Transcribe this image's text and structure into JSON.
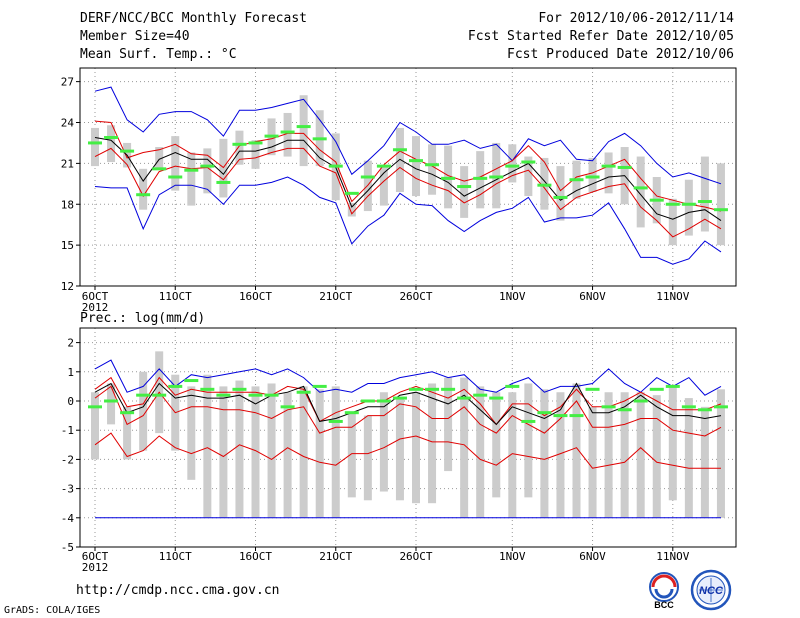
{
  "header": {
    "title": "DERF/NCC/BCC Monthly Forecast",
    "member_size": "Member Size=40",
    "variable": "Mean Surf. Temp.: °C",
    "period": "For 2012/10/06-2012/11/14",
    "started": "Fcst Started Refer Date 2012/10/05",
    "produced": "Fcst Produced Date 2012/10/06"
  },
  "footer": {
    "url": "http://cmdp.ncc.cma.gov.cn",
    "grads": "GrADS: COLA/IGES"
  },
  "logos": {
    "bcc_text": "BCC",
    "ncc_text": "NCC"
  },
  "colors": {
    "mean": "#000000",
    "spread": "#e00000",
    "extreme": "#0000dd",
    "box": "#cccccc",
    "ens": "#44ee44",
    "grid": "#999999"
  },
  "x_ticks": [
    "6OCT",
    "11OCT",
    "16OCT",
    "21OCT",
    "26OCT",
    "1NOV",
    "6NOV",
    "11NOV"
  ],
  "x_year": "2012",
  "chart_data": [
    {
      "type": "line",
      "title": "Mean Surf. Temp.: °C",
      "ylim": [
        12,
        28
      ],
      "yticks": [
        12,
        15,
        18,
        21,
        24,
        27
      ],
      "x": [
        1,
        2,
        3,
        4,
        5,
        6,
        7,
        8,
        9,
        10,
        11,
        12,
        13,
        14,
        15,
        16,
        17,
        18,
        19,
        20,
        21,
        22,
        23,
        24,
        25,
        26,
        27,
        28,
        29,
        30,
        31,
        32,
        33,
        34,
        35,
        36,
        37,
        38,
        39,
        40
      ],
      "series": [
        {
          "name": "max",
          "color": "#0000dd",
          "values": [
            26.3,
            26.6,
            24.2,
            23.3,
            24.6,
            24.8,
            24.8,
            24.2,
            23.0,
            24.9,
            24.9,
            25.1,
            25.4,
            25.7,
            24.2,
            22.6,
            20.2,
            21.2,
            22.3,
            24.0,
            23.3,
            22.4,
            22.4,
            22.7,
            22.1,
            22.4,
            21.2,
            22.8,
            22.3,
            22.7,
            21.3,
            21.2,
            22.6,
            23.2,
            22.3,
            21.0,
            20.0,
            20.3,
            19.9,
            19.5
          ]
        },
        {
          "name": "upper",
          "color": "#e00000",
          "values": [
            24.1,
            24.0,
            21.4,
            21.8,
            22.0,
            22.4,
            21.7,
            21.6,
            20.7,
            22.3,
            22.6,
            22.8,
            23.2,
            23.2,
            22.0,
            21.1,
            18.2,
            19.4,
            20.9,
            21.9,
            21.3,
            20.8,
            20.1,
            19.7,
            20.0,
            20.6,
            21.2,
            22.3,
            21.1,
            19.0,
            20.0,
            20.3,
            20.8,
            21.3,
            19.9,
            18.6,
            18.3,
            18.0,
            17.8,
            17.5
          ]
        },
        {
          "name": "mean",
          "color": "#000000",
          "values": [
            22.9,
            22.7,
            21.6,
            19.7,
            21.3,
            21.8,
            21.3,
            21.3,
            20.2,
            21.9,
            21.9,
            22.2,
            22.7,
            22.7,
            21.4,
            20.7,
            17.8,
            19.0,
            20.3,
            21.3,
            20.6,
            20.2,
            19.6,
            18.6,
            19.2,
            19.8,
            20.4,
            21.0,
            19.7,
            18.3,
            19.0,
            19.5,
            20.0,
            20.1,
            18.7,
            17.3,
            16.9,
            17.4,
            17.6,
            16.8
          ]
        },
        {
          "name": "lower",
          "color": "#e00000",
          "values": [
            21.5,
            22.1,
            20.9,
            18.6,
            20.4,
            20.8,
            20.6,
            20.7,
            19.8,
            21.3,
            21.4,
            21.8,
            22.1,
            22.1,
            20.8,
            20.3,
            17.3,
            18.6,
            19.7,
            20.7,
            19.9,
            19.4,
            19.0,
            18.1,
            18.7,
            19.5,
            20.1,
            20.5,
            19.2,
            17.6,
            18.5,
            18.9,
            19.3,
            19.5,
            17.8,
            16.8,
            15.6,
            16.2,
            16.9,
            16.2
          ]
        },
        {
          "name": "min",
          "color": "#0000dd",
          "values": [
            19.3,
            19.2,
            19.2,
            16.2,
            18.7,
            19.4,
            19.4,
            19.1,
            18.0,
            19.4,
            19.4,
            19.6,
            20.0,
            19.4,
            18.5,
            18.1,
            15.1,
            16.4,
            17.2,
            18.8,
            18.0,
            17.9,
            16.8,
            16.0,
            16.8,
            17.4,
            17.7,
            18.5,
            16.7,
            17.0,
            17.0,
            17.2,
            18.1,
            16.2,
            14.1,
            14.1,
            13.6,
            14.0,
            15.3,
            14.5
          ]
        }
      ],
      "box_range": [
        [
          20.8,
          23.6
        ],
        [
          21.1,
          23.8
        ],
        [
          20.7,
          22.5
        ],
        [
          17.6,
          20.6
        ],
        [
          20.7,
          22.2
        ],
        [
          19.0,
          23.0
        ],
        [
          17.9,
          21.8
        ],
        [
          18.8,
          22.1
        ],
        [
          18.5,
          22.8
        ],
        [
          20.9,
          23.4
        ],
        [
          20.6,
          22.7
        ],
        [
          21.6,
          24.3
        ],
        [
          21.5,
          24.7
        ],
        [
          20.8,
          26.0
        ],
        [
          20.8,
          24.9
        ],
        [
          18.3,
          23.2
        ],
        [
          17.1,
          18.1
        ],
        [
          17.5,
          21.2
        ],
        [
          17.9,
          20.8
        ],
        [
          18.9,
          23.6
        ],
        [
          18.6,
          23.0
        ],
        [
          18.7,
          22.4
        ],
        [
          17.7,
          22.3
        ],
        [
          17.0,
          20.8
        ],
        [
          17.7,
          21.9
        ],
        [
          17.7,
          22.5
        ],
        [
          19.6,
          22.4
        ],
        [
          18.6,
          21.5
        ],
        [
          17.6,
          21.4
        ],
        [
          16.8,
          20.8
        ],
        [
          18.4,
          21.2
        ],
        [
          18.9,
          21.4
        ],
        [
          18.8,
          21.8
        ],
        [
          18.0,
          22.2
        ],
        [
          16.3,
          21.5
        ],
        [
          16.6,
          20.0
        ],
        [
          15.0,
          18.4
        ],
        [
          15.7,
          19.8
        ],
        [
          16.0,
          21.5
        ],
        [
          15.0,
          21.0
        ]
      ],
      "ensemble_markers": [
        22.5,
        22.9,
        21.9,
        18.7,
        20.6,
        20.0,
        20.5,
        20.8,
        19.6,
        22.4,
        22.5,
        23.0,
        23.3,
        23.7,
        22.8,
        20.8,
        18.8,
        20.0,
        20.8,
        22.0,
        21.2,
        20.9,
        19.9,
        19.3,
        19.9,
        20.0,
        20.8,
        21.1,
        19.4,
        18.5,
        19.8,
        20.0,
        20.8,
        20.7,
        19.2,
        18.3,
        18.0,
        18.0,
        18.2,
        17.6
      ]
    },
    {
      "type": "line",
      "title": "Prec.: log(mm/d)",
      "ylim": [
        -5,
        2.5
      ],
      "yticks": [
        -5,
        -4,
        -3,
        -2,
        -1,
        0,
        1,
        2
      ],
      "x": [
        1,
        2,
        3,
        4,
        5,
        6,
        7,
        8,
        9,
        10,
        11,
        12,
        13,
        14,
        15,
        16,
        17,
        18,
        19,
        20,
        21,
        22,
        23,
        24,
        25,
        26,
        27,
        28,
        29,
        30,
        31,
        32,
        33,
        34,
        35,
        36,
        37,
        38,
        39,
        40
      ],
      "series": [
        {
          "name": "max",
          "color": "#0000dd",
          "values": [
            1.1,
            1.4,
            0.3,
            0.5,
            1.1,
            0.5,
            0.9,
            0.8,
            0.9,
            1.0,
            1.1,
            0.9,
            1.1,
            0.8,
            0.3,
            0.4,
            0.3,
            0.6,
            0.6,
            0.8,
            0.9,
            1.0,
            0.8,
            0.9,
            0.4,
            0.3,
            0.6,
            0.8,
            0.3,
            0.5,
            0.5,
            0.6,
            1.1,
            0.6,
            0.3,
            0.8,
            0.5,
            0.8,
            0.2,
            0.5
          ]
        },
        {
          "name": "upper",
          "color": "#e00000",
          "values": [
            0.4,
            0.8,
            -0.2,
            -0.1,
            0.8,
            0.2,
            0.4,
            0.3,
            0.3,
            0.3,
            0.3,
            0.2,
            0.5,
            0.4,
            -0.7,
            -0.4,
            -0.2,
            0.0,
            0.0,
            0.3,
            0.5,
            0.3,
            0.1,
            0.4,
            -0.1,
            -0.8,
            -0.1,
            -0.1,
            -0.5,
            -0.2,
            0.4,
            -0.2,
            -0.2,
            0.0,
            0.3,
            0.0,
            -0.3,
            -0.3,
            -0.3,
            -0.1
          ]
        },
        {
          "name": "mean",
          "color": "#000000",
          "values": [
            0.3,
            0.6,
            -0.4,
            -0.2,
            0.6,
            0.1,
            0.2,
            0.1,
            0.1,
            0.2,
            -0.1,
            0.2,
            0.3,
            0.5,
            -0.7,
            -0.6,
            -0.4,
            -0.2,
            -0.2,
            0.2,
            0.3,
            0.1,
            -0.1,
            0.2,
            -0.3,
            -0.8,
            -0.2,
            -0.4,
            -0.6,
            -0.3,
            0.6,
            -0.4,
            -0.4,
            -0.2,
            0.2,
            -0.2,
            -0.5,
            -0.5,
            -0.6,
            -0.5
          ]
        },
        {
          "name": "lower",
          "color": "#e00000",
          "values": [
            0.1,
            0.5,
            -0.8,
            -0.5,
            0.3,
            -0.4,
            -0.2,
            -0.2,
            -0.3,
            -0.3,
            -0.4,
            -0.6,
            -0.3,
            -0.2,
            -1.1,
            -0.9,
            -0.9,
            -0.5,
            -0.5,
            -0.1,
            -0.2,
            -0.6,
            -0.6,
            -0.2,
            -0.8,
            -1.1,
            -0.5,
            -0.8,
            -1.1,
            -0.6,
            0.0,
            -0.9,
            -0.9,
            -0.8,
            -0.6,
            -0.6,
            -1.0,
            -1.1,
            -1.2,
            -0.9
          ]
        },
        {
          "name": "min",
          "color": "#e00000",
          "values": [
            -1.5,
            -1.1,
            -1.9,
            -1.7,
            -1.2,
            -1.6,
            -1.8,
            -1.6,
            -1.9,
            -1.5,
            -1.7,
            -2.0,
            -1.6,
            -1.9,
            -2.1,
            -2.2,
            -1.8,
            -1.8,
            -1.6,
            -1.3,
            -1.2,
            -1.4,
            -1.4,
            -1.5,
            -2.0,
            -2.2,
            -1.8,
            -1.9,
            -2.0,
            -1.8,
            -1.6,
            -2.3,
            -2.2,
            -2.1,
            -1.6,
            -2.1,
            -2.2,
            -2.3,
            -2.3,
            -2.3
          ]
        },
        {
          "name": "floor",
          "color": "#0000dd",
          "values": [
            -4,
            -4,
            -4,
            -4,
            -4,
            -4,
            -4,
            -4,
            -4,
            -4,
            -4,
            -4,
            -4,
            -4,
            -4,
            -4,
            -4,
            -4,
            -4,
            -4,
            -4,
            -4,
            -4,
            -4,
            -4,
            -4,
            -4,
            -4,
            -4,
            -4,
            -4,
            -4,
            -4,
            -4,
            -4,
            -4,
            -4,
            -4,
            -4,
            -4
          ]
        }
      ],
      "box_range": [
        [
          -2.0,
          0.3
        ],
        [
          -0.8,
          0.6
        ],
        [
          -2.0,
          -0.2
        ],
        [
          -1.7,
          1.0
        ],
        [
          -1.1,
          1.7
        ],
        [
          -1.7,
          0.9
        ],
        [
          -2.7,
          0.5
        ],
        [
          -4.0,
          0.9
        ],
        [
          -4.0,
          0.5
        ],
        [
          -4.0,
          0.7
        ],
        [
          -4.0,
          0.5
        ],
        [
          -4.0,
          0.6
        ],
        [
          -4.0,
          0.3
        ],
        [
          -4.0,
          0.5
        ],
        [
          -4.0,
          0.4
        ],
        [
          -4.0,
          0.5
        ],
        [
          -3.3,
          -0.4
        ],
        [
          -3.4,
          -0.5
        ],
        [
          -3.1,
          0.3
        ],
        [
          -3.4,
          0.1
        ],
        [
          -3.5,
          0.3
        ],
        [
          -3.5,
          0.6
        ],
        [
          -2.4,
          0.8
        ],
        [
          -4.0,
          0.8
        ],
        [
          -4.0,
          0.5
        ],
        [
          -3.3,
          0.3
        ],
        [
          -4.0,
          0.3
        ],
        [
          -3.3,
          0.6
        ],
        [
          -4.0,
          0.4
        ],
        [
          -4.0,
          0.3
        ],
        [
          -4.0,
          0.6
        ],
        [
          -4.0,
          -0.2
        ],
        [
          -4.0,
          0.3
        ],
        [
          -4.0,
          0.3
        ],
        [
          -4.0,
          0.3
        ],
        [
          -4.0,
          0.2
        ],
        [
          -3.4,
          0.5
        ],
        [
          -4.0,
          0.1
        ],
        [
          -4.0,
          -0.2
        ],
        [
          -4.0,
          0.4
        ]
      ],
      "ensemble_markers": [
        -0.2,
        0.0,
        -0.4,
        0.2,
        0.2,
        0.5,
        0.7,
        0.4,
        0.2,
        0.4,
        0.2,
        0.2,
        -0.2,
        0.3,
        0.5,
        -0.7,
        -0.4,
        0.0,
        0.0,
        0.1,
        0.4,
        0.4,
        0.4,
        0.1,
        0.2,
        0.1,
        0.5,
        -0.7,
        -0.4,
        -0.5,
        -0.5,
        0.4,
        -0.2,
        -0.3,
        0.0,
        0.4,
        0.5,
        -0.2,
        -0.3,
        -0.2
      ]
    }
  ]
}
